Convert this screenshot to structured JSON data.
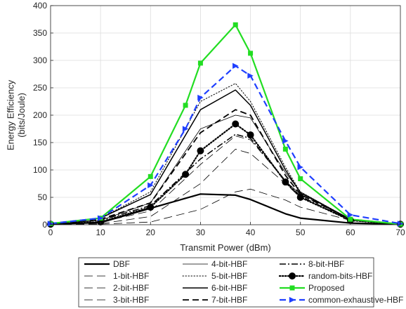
{
  "chart_data": {
    "type": "line",
    "xlabel": "Transmit Power (dBm)",
    "ylabel": "Energy Efficiency\n(bits/Joule)",
    "xlim": [
      0,
      70
    ],
    "ylim": [
      0,
      400
    ],
    "xticks": [
      0,
      10,
      20,
      30,
      40,
      50,
      60,
      70
    ],
    "yticks": [
      0,
      50,
      100,
      150,
      200,
      250,
      300,
      350,
      400
    ],
    "grid": true,
    "legend_placement": "below-plot",
    "series": [
      {
        "name": "DBF",
        "style": "solid",
        "color": "#000000",
        "width": 2.2,
        "marker": "none",
        "x": [
          0,
          10,
          20,
          30,
          37,
          40,
          47,
          50,
          60,
          70
        ],
        "y": [
          1,
          4,
          30,
          56,
          54,
          46,
          20,
          12,
          3,
          1
        ]
      },
      {
        "name": "1-bit-HBF",
        "style": "longdash",
        "color": "#000000",
        "width": 0.8,
        "marker": "none",
        "x": [
          0,
          10,
          20,
          30,
          37,
          40,
          47,
          50,
          60,
          70
        ],
        "y": [
          0,
          1,
          5,
          28,
          60,
          65,
          45,
          32,
          8,
          1
        ]
      },
      {
        "name": "2-bit-HBF",
        "style": "longdash",
        "color": "#000000",
        "width": 0.8,
        "marker": "none",
        "x": [
          0,
          10,
          20,
          30,
          37,
          40,
          47,
          50,
          60,
          70
        ],
        "y": [
          0,
          2,
          15,
          75,
          138,
          130,
          75,
          50,
          10,
          1
        ]
      },
      {
        "name": "3-bit-HBF",
        "style": "longdash",
        "color": "#000000",
        "width": 0.8,
        "marker": "none",
        "x": [
          0,
          10,
          20,
          30,
          37,
          40,
          47,
          50,
          60,
          70
        ],
        "y": [
          1,
          5,
          25,
          110,
          162,
          155,
          80,
          55,
          10,
          1
        ]
      },
      {
        "name": "4-bit-HBF",
        "style": "solid",
        "color": "#000000",
        "width": 0.8,
        "marker": "none",
        "x": [
          0,
          10,
          20,
          30,
          37,
          40,
          47,
          50,
          60,
          70
        ],
        "y": [
          1,
          8,
          40,
          175,
          200,
          195,
          95,
          60,
          10,
          1
        ]
      },
      {
        "name": "5-bit-HBF",
        "style": "dotted",
        "color": "#000000",
        "width": 1.0,
        "marker": "none",
        "x": [
          0,
          10,
          20,
          30,
          37,
          40,
          47,
          50,
          60,
          70
        ],
        "y": [
          2,
          12,
          60,
          225,
          258,
          225,
          105,
          60,
          10,
          1
        ]
      },
      {
        "name": "6-bit-HBF",
        "style": "solid",
        "color": "#000000",
        "width": 1.5,
        "marker": "none",
        "x": [
          0,
          10,
          20,
          30,
          37,
          40,
          47,
          50,
          60,
          70
        ],
        "y": [
          2,
          12,
          55,
          210,
          246,
          218,
          100,
          58,
          10,
          1
        ]
      },
      {
        "name": "7-bit-HBF",
        "style": "dash",
        "color": "#000000",
        "width": 1.8,
        "marker": "none",
        "x": [
          0,
          10,
          20,
          30,
          37,
          40,
          47,
          50,
          60,
          70
        ],
        "y": [
          2,
          10,
          40,
          168,
          210,
          200,
          90,
          55,
          10,
          1
        ]
      },
      {
        "name": "8-bit-HBF",
        "style": "dashdot",
        "color": "#000000",
        "width": 1.5,
        "marker": "none",
        "x": [
          0,
          10,
          20,
          30,
          37,
          40,
          47,
          50,
          60,
          70
        ],
        "y": [
          2,
          8,
          35,
          120,
          165,
          158,
          80,
          52,
          8,
          1
        ]
      },
      {
        "name": "random-bits-HBF",
        "style": "dotted",
        "color": "#000000",
        "width": 2.2,
        "marker": "circle",
        "x": [
          0,
          10,
          20,
          27,
          30,
          37,
          40,
          47,
          50,
          60,
          70
        ],
        "y": [
          1,
          5,
          32,
          92,
          135,
          184,
          164,
          78,
          50,
          8,
          1
        ]
      },
      {
        "name": "Proposed",
        "style": "solid",
        "color": "#22dd22",
        "width": 2.2,
        "marker": "square",
        "x": [
          0,
          10,
          20,
          27,
          30,
          37,
          40,
          47,
          50,
          60,
          70
        ],
        "y": [
          2,
          12,
          88,
          218,
          295,
          365,
          313,
          138,
          84,
          10,
          1
        ]
      },
      {
        "name": "common-exhaustive-HBF",
        "style": "dash",
        "color": "#1f3fff",
        "width": 2.2,
        "marker": "triangle-right",
        "x": [
          0,
          10,
          20,
          27,
          30,
          37,
          40,
          47,
          50,
          60,
          70
        ],
        "y": [
          2,
          12,
          72,
          175,
          232,
          290,
          272,
          153,
          105,
          18,
          2
        ]
      }
    ]
  }
}
